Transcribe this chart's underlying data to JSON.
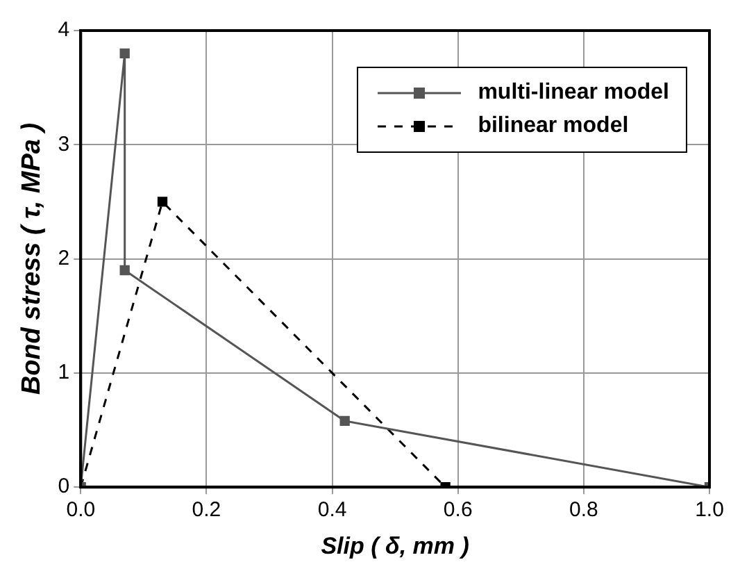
{
  "chart_data": {
    "type": "line",
    "xlabel": "Slip ( δ, mm )",
    "ylabel": "Bond stress ( τ, MPa )",
    "xlim": [
      0,
      1
    ],
    "xticks": [
      {
        "value": 0,
        "label": "0.0"
      },
      {
        "value": 0.2,
        "label": "0.2"
      },
      {
        "value": 0.4,
        "label": "0.4"
      },
      {
        "value": 0.6,
        "label": "0.6"
      },
      {
        "value": 0.8,
        "label": "0.8"
      },
      {
        "value": 1,
        "label": "1.0"
      }
    ],
    "ylim": [
      0,
      4
    ],
    "yticks": [
      0,
      1,
      2,
      3,
      4
    ],
    "grid": true,
    "legend": "top right",
    "marker": "square",
    "series": [
      {
        "name": "multi-linear model",
        "color": "#555555",
        "line_style": "solid",
        "x": [
          0,
          0.07,
          0.07,
          0.42,
          1.0
        ],
        "values": [
          0,
          3.8,
          1.9,
          0.58,
          0
        ]
      },
      {
        "name": "bilinear model",
        "color": "#000000",
        "line_style": "dashed",
        "x": [
          0,
          0.13,
          0.58
        ],
        "values": [
          0,
          2.5,
          0
        ]
      }
    ]
  }
}
